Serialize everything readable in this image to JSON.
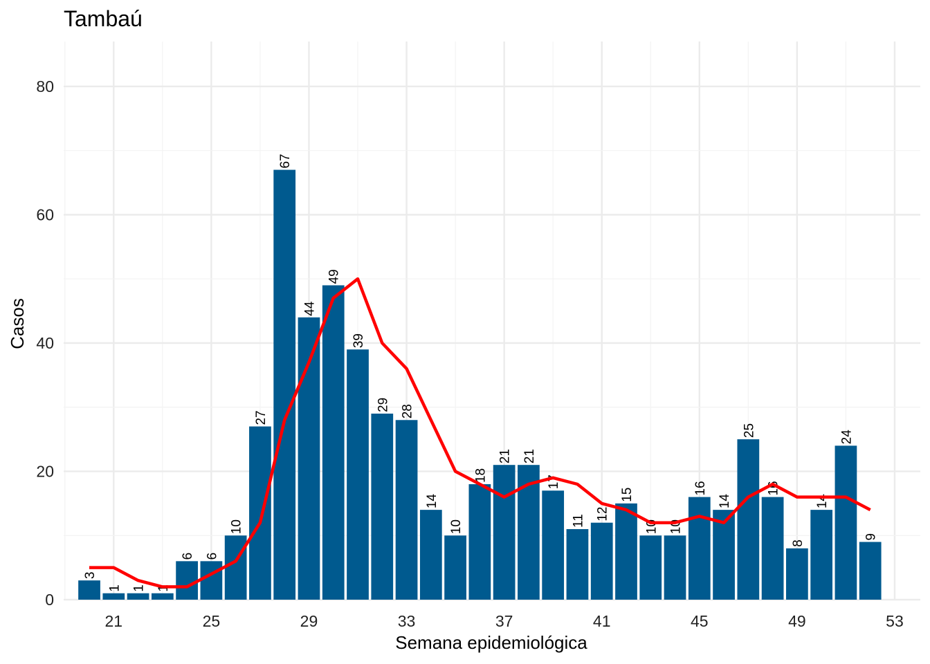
{
  "chart_data": {
    "type": "bar",
    "title": "Tambaú",
    "xlabel": "Semana epidemiológica",
    "ylabel": "Casos",
    "x": [
      20,
      21,
      22,
      23,
      24,
      25,
      26,
      27,
      28,
      29,
      30,
      31,
      32,
      33,
      34,
      35,
      36,
      37,
      38,
      39,
      40,
      41,
      42,
      43,
      44,
      45,
      46,
      47,
      48,
      49,
      50,
      51,
      52
    ],
    "values": [
      3,
      1,
      1,
      1,
      6,
      6,
      10,
      27,
      67,
      44,
      49,
      39,
      29,
      28,
      14,
      10,
      18,
      21,
      21,
      17,
      11,
      12,
      15,
      10,
      10,
      16,
      14,
      25,
      16,
      8,
      14,
      24,
      9
    ],
    "bar_color": "#005a8f",
    "line": {
      "color": "#ff0000",
      "values": [
        5,
        5,
        3,
        2,
        2,
        4,
        6,
        12,
        28,
        37,
        47,
        50,
        40,
        36,
        28,
        20,
        18,
        16,
        18,
        19,
        18,
        15,
        14,
        12,
        12,
        13,
        12,
        16,
        18,
        16,
        16,
        16,
        14
      ]
    },
    "xticks": [
      21,
      25,
      29,
      33,
      37,
      41,
      45,
      49,
      53
    ],
    "yticks": [
      0,
      20,
      40,
      60,
      80
    ],
    "xlim": [
      18.95,
      54.05
    ],
    "ylim": [
      0,
      87
    ],
    "grid": true
  }
}
